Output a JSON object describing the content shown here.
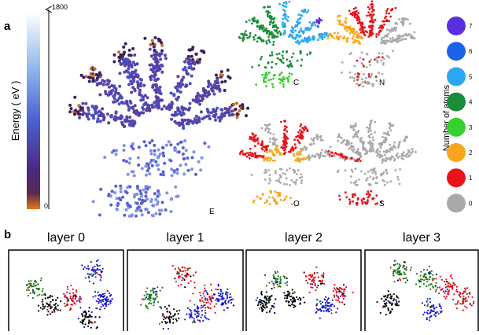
{
  "panel_a": {
    "label": "a",
    "colorbar": {
      "title": "Energy ( eV )",
      "ticks": [
        1800,
        0
      ]
    },
    "plots": [
      {
        "label": "E"
      },
      {
        "label": "C"
      },
      {
        "label": "N"
      },
      {
        "label": "O"
      },
      {
        "label": "S"
      }
    ],
    "legend": {
      "title": "Number of atoms",
      "items": [
        {
          "label": "7",
          "color": "#5a2fe0"
        },
        {
          "label": "6",
          "color": "#1b62e8"
        },
        {
          "label": "5",
          "color": "#2ba8f0"
        },
        {
          "label": "4",
          "color": "#1a8c3b"
        },
        {
          "label": "3",
          "color": "#36d02f"
        },
        {
          "label": "2",
          "color": "#f7a61c"
        },
        {
          "label": "1",
          "color": "#e8141b"
        },
        {
          "label": "0",
          "color": "#a9a9a9"
        }
      ]
    }
  },
  "panel_b": {
    "label": "b",
    "layers": [
      "layer 0",
      "layer 1",
      "layer 2",
      "layer 3"
    ]
  }
}
